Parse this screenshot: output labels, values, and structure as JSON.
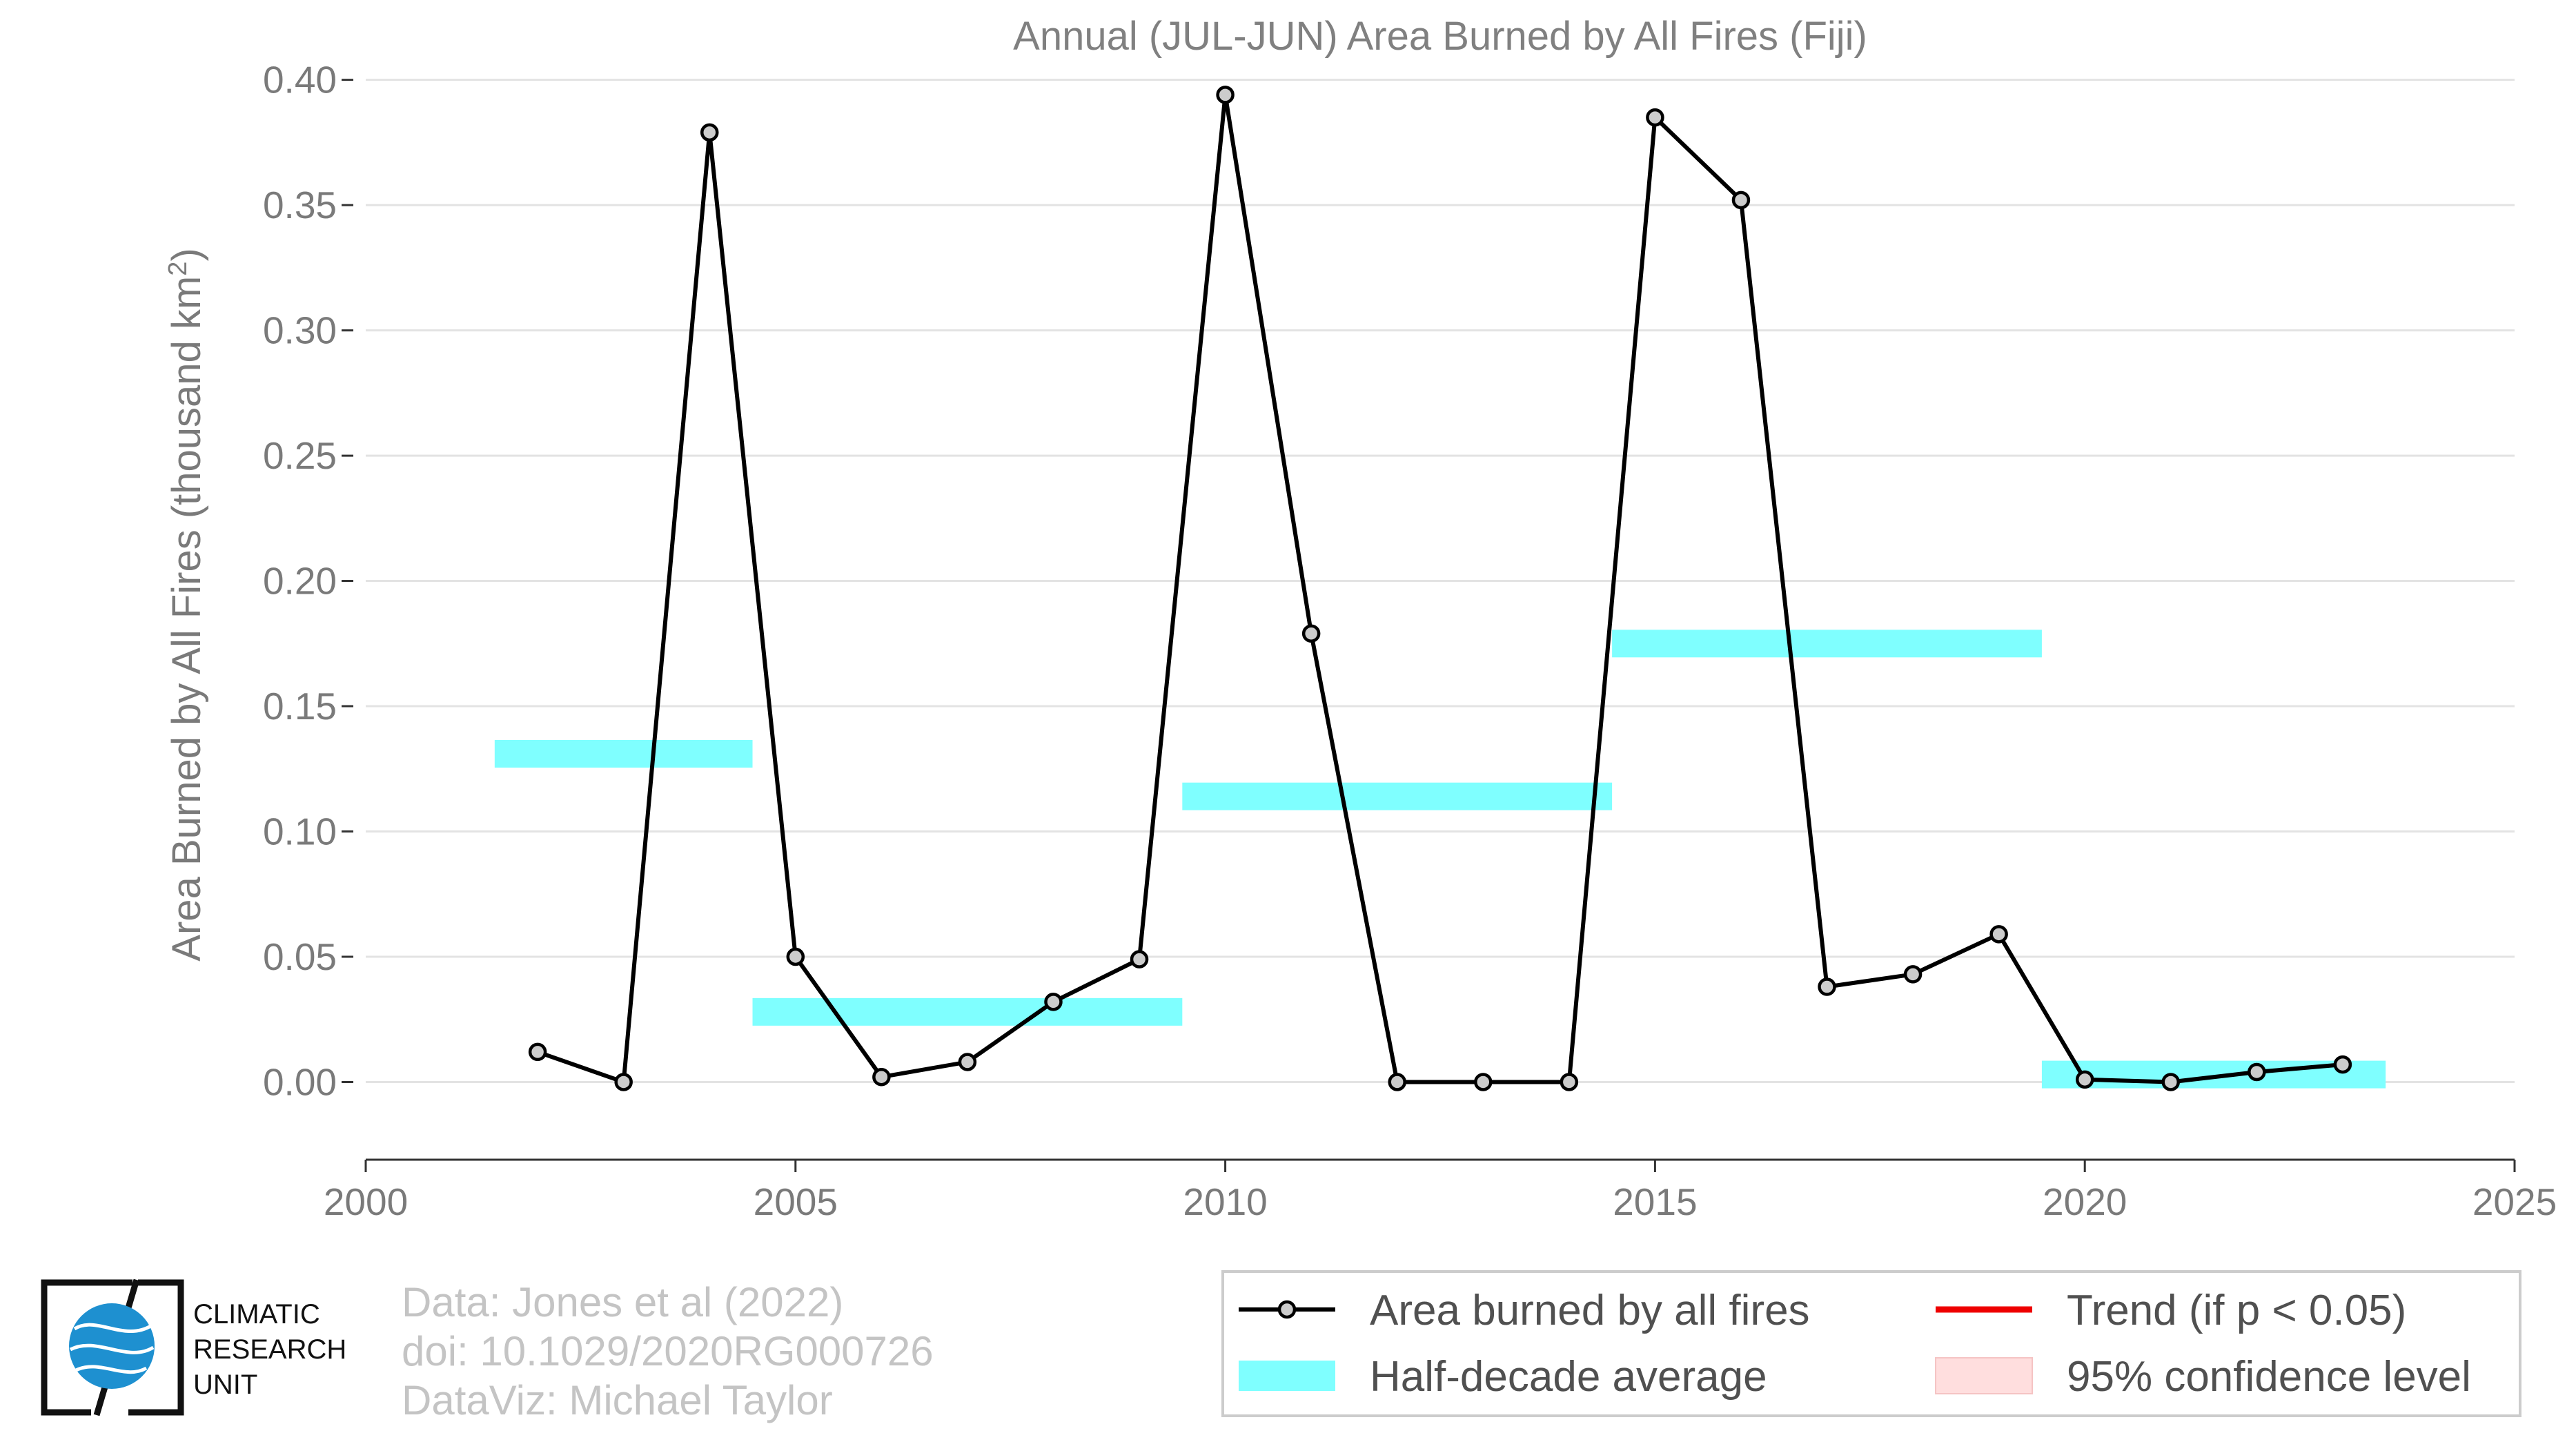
{
  "chart_data": {
    "type": "line",
    "title": "Annual (JUL-JUN) Area Burned by All Fires (Fiji)",
    "ylabel_main": "Area Burned by All Fires (thousand km",
    "ylabel_sup": "2",
    "ylabel_close": ")",
    "xlabel": "",
    "xlim": [
      2000,
      2025
    ],
    "ylim": [
      -0.031,
      0.401
    ],
    "xticks": [
      2000,
      2005,
      2010,
      2015,
      2020,
      2025
    ],
    "yticks": [
      0.0,
      0.05,
      0.1,
      0.15,
      0.2,
      0.25,
      0.3,
      0.35,
      0.4
    ],
    "ytick_labels": [
      "0.00",
      "0.05",
      "0.10",
      "0.15",
      "0.20",
      "0.25",
      "0.30",
      "0.35",
      "0.40"
    ],
    "grid": "horizontal",
    "legend_placement": "bottom-right",
    "series": [
      {
        "name": "Area burned by all fires",
        "color": "#000000",
        "marker_fill": "#cccccc",
        "x": [
          2002,
          2003,
          2004,
          2005,
          2006,
          2007,
          2008,
          2009,
          2010,
          2011,
          2012,
          2013,
          2014,
          2015,
          2016,
          2017,
          2018,
          2019,
          2020,
          2021,
          2022,
          2023
        ],
        "y": [
          0.012,
          0.0,
          0.379,
          0.05,
          0.002,
          0.008,
          0.032,
          0.049,
          0.394,
          0.179,
          0.0,
          0.0,
          0.0,
          0.385,
          0.352,
          0.038,
          0.043,
          0.059,
          0.001,
          0.0,
          0.004,
          0.007
        ]
      }
    ],
    "half_decade_averages": {
      "name": "Half-decade average",
      "color": "#7fffff",
      "segments": [
        {
          "x0": 2001.5,
          "x1": 2004.5,
          "y": 0.131
        },
        {
          "x0": 2004.5,
          "x1": 2009.5,
          "y": 0.028
        },
        {
          "x0": 2009.5,
          "x1": 2014.5,
          "y": 0.114
        },
        {
          "x0": 2014.5,
          "x1": 2019.5,
          "y": 0.175
        },
        {
          "x0": 2019.5,
          "x1": 2023.5,
          "y": 0.003
        }
      ]
    },
    "legend": [
      {
        "label": "Area burned by all fires",
        "kind": "line-marker",
        "color": "#000000"
      },
      {
        "label": "Trend (if p < 0.05)",
        "kind": "line",
        "color": "#ee0000"
      },
      {
        "label": "Half-decade average",
        "kind": "band",
        "color": "#7fffff"
      },
      {
        "label": "95% confidence level",
        "kind": "patch",
        "color": "#ffdede"
      }
    ]
  },
  "credits": {
    "line1": "Data: Jones et al (2022)",
    "line2": "doi: 10.1029/2020RG000726",
    "line3": "DataViz: Michael Taylor"
  },
  "logo": {
    "line1": "CLIMATIC",
    "line2": "RESEARCH",
    "line3": "UNIT",
    "globe_color": "#1e90d0"
  }
}
